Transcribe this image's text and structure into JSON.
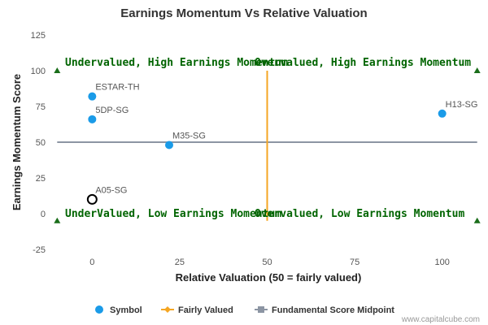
{
  "chart_data": {
    "type": "scatter",
    "title": "Earnings Momentum Vs Relative Valuation",
    "xlabel": "Relative Valuation (50 = fairly valued)",
    "ylabel": "Earnings Momentum Score",
    "xlim": [
      -11,
      111
    ],
    "ylim": [
      -25,
      125
    ],
    "xticks": [
      0,
      25,
      50,
      75,
      100
    ],
    "yticks": [
      -25,
      0,
      25,
      50,
      75,
      100,
      125
    ],
    "grid": false,
    "legend_position": "bottom",
    "series": [
      {
        "name": "Symbol",
        "color": "#1a9be8",
        "points": [
          {
            "label": "ESTAR-TH",
            "x": 0,
            "y": 82
          },
          {
            "label": "5DP-SG",
            "x": 0,
            "y": 66
          },
          {
            "label": "M35-SG",
            "x": 22,
            "y": 48
          },
          {
            "label": "H13-SG",
            "x": 100,
            "y": 70
          },
          {
            "label": "A05-SG",
            "x": 0,
            "y": 10,
            "highlighted": true
          }
        ]
      },
      {
        "name": "Fairly Valued",
        "color": "#f5a623",
        "points": [
          {
            "x": 50,
            "y": -5
          },
          {
            "x": 50,
            "y": 100
          }
        ]
      },
      {
        "name": "Fundamental Score Midpoint",
        "color": "#8c95a3",
        "points": [
          {
            "x": -10,
            "y": 50
          },
          {
            "x": 110,
            "y": 50
          }
        ]
      }
    ],
    "quadrant_labels": [
      {
        "text": "Undervalued, High Earnings Momentum",
        "x": -10,
        "y": 100
      },
      {
        "text": "Overvalued, High Earnings Momentum",
        "x": 110,
        "y": 100
      },
      {
        "text": "UnderValued, Low Earnings Momentum",
        "x": -10,
        "y": -5
      },
      {
        "text": "Overvalued, Low Earnings Momentum",
        "x": 110,
        "y": -5
      }
    ],
    "corner_markers": [
      {
        "x": -10,
        "y": 100
      },
      {
        "x": 110,
        "y": 100
      },
      {
        "x": -10,
        "y": -5
      },
      {
        "x": 110,
        "y": -5
      }
    ],
    "marker_color": "#1a6e1a"
  },
  "credit": "www.capitalcube.com"
}
